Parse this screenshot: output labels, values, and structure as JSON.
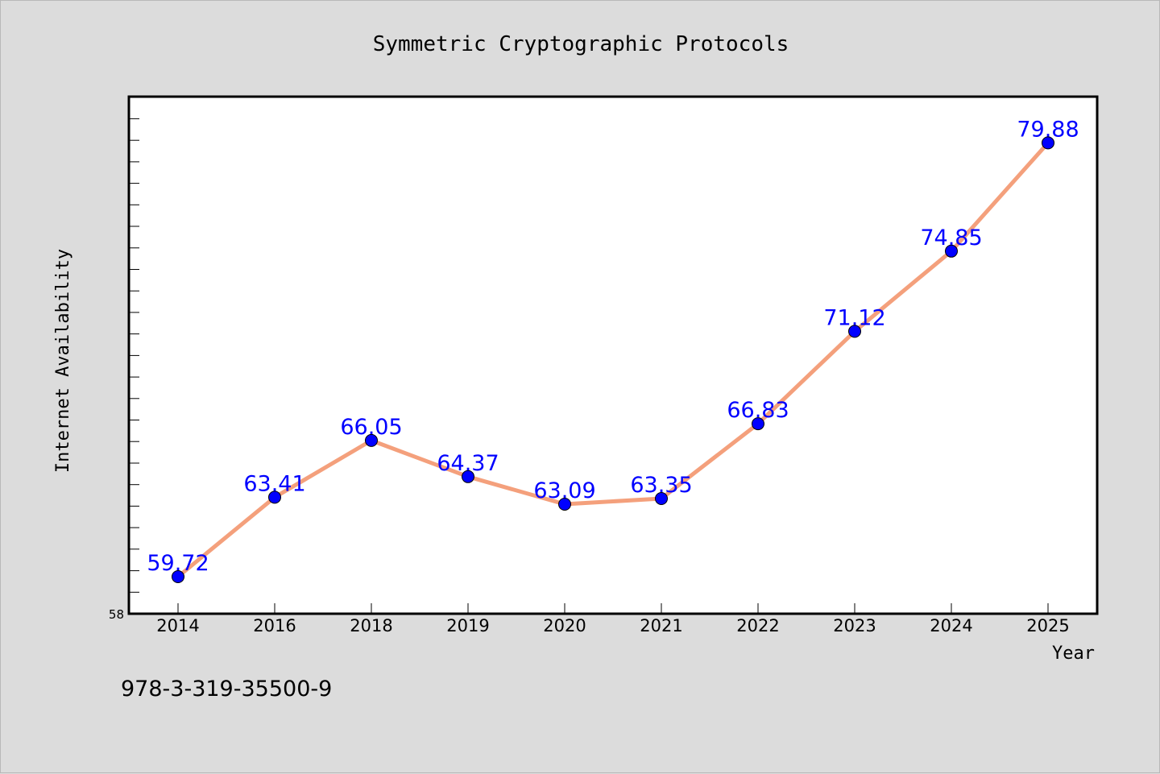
{
  "chart_data": {
    "type": "line",
    "title": "Symmetric Cryptographic Protocols",
    "xlabel": "Year",
    "ylabel": "Internet Availability",
    "categories": [
      "2014",
      "2016",
      "2018",
      "2019",
      "2020",
      "2021",
      "2022",
      "2023",
      "2024",
      "2025"
    ],
    "series": [
      {
        "values": [
          59.72,
          63.41,
          66.05,
          64.37,
          63.09,
          63.35,
          66.83,
          71.12,
          74.85,
          79.88
        ],
        "data_labels": [
          "59.72",
          "63.41",
          "66.05",
          "64.37",
          "63.09",
          "63.35",
          "66.83",
          "71.12",
          "74.85",
          "79.88"
        ]
      }
    ],
    "ylim": [
      58,
      82
    ],
    "y_tick_labels": [
      "58"
    ],
    "grid": false,
    "legend": "none",
    "colors": {
      "line": "#f4a07c",
      "marker": "#0000ff",
      "data_label": "#0000ff",
      "background": "#dcdcdc",
      "plot_background": "#ffffff"
    }
  },
  "footer": {
    "isbn": "978-3-319-35500-9"
  }
}
